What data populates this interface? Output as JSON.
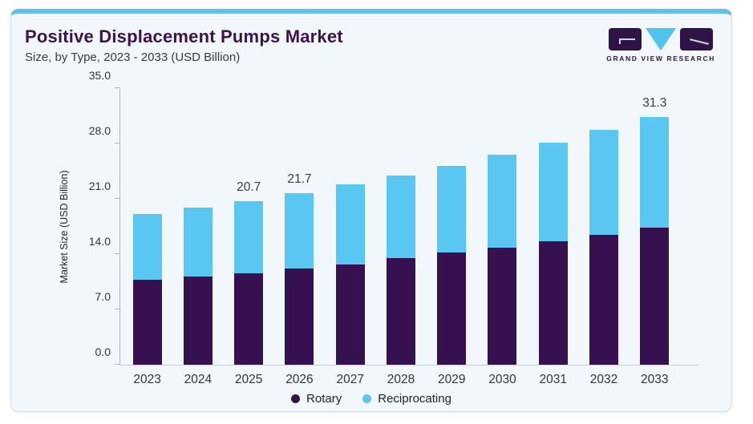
{
  "header": {
    "title": "Positive Displacement Pumps Market",
    "subtitle": "Size, by Type, 2023 - 2033 (USD Billion)"
  },
  "logo": {
    "caption": "GRAND VIEW RESEARCH",
    "mark_colors": {
      "boxes": "#2f1247",
      "triangle": "#4fc2ee"
    }
  },
  "colors": {
    "card_background": "#f1f7fb",
    "top_accent": "#65c0e7",
    "title_text": "#3d1152",
    "axis_text": "#333333"
  },
  "chart_data": {
    "type": "bar",
    "stacked": true,
    "title": "Positive Displacement Pumps Market Size, by Type, 2023 - 2033 (USD Billion)",
    "xlabel": "",
    "ylabel": "Market Size (USD Billion)",
    "ylim": [
      0,
      35
    ],
    "yticks": [
      "0.0",
      "7.0",
      "14.0",
      "21.0",
      "28.0",
      "35.0"
    ],
    "ytick_values": [
      0,
      7,
      14,
      21,
      28,
      35
    ],
    "grid": false,
    "legend_position": "bottom",
    "categories": [
      "2023",
      "2024",
      "2025",
      "2026",
      "2027",
      "2028",
      "2029",
      "2030",
      "2031",
      "2032",
      "2033"
    ],
    "series": [
      {
        "name": "Rotary",
        "color": "#36104f",
        "values": [
          10.8,
          11.2,
          11.6,
          12.2,
          12.7,
          13.5,
          14.2,
          14.8,
          15.6,
          16.4,
          17.3
        ]
      },
      {
        "name": "Reciprocating",
        "color": "#5ac6f2",
        "values": [
          8.3,
          8.7,
          9.1,
          9.5,
          10.1,
          10.4,
          11.0,
          11.8,
          12.5,
          13.3,
          14.0
        ]
      }
    ],
    "totals": [
      19.1,
      19.9,
      20.7,
      21.7,
      22.8,
      23.9,
      25.2,
      26.6,
      28.1,
      29.7,
      31.3
    ],
    "bar_labels": [
      "",
      "",
      "20.7",
      "21.7",
      "",
      "",
      "",
      "",
      "",
      "",
      "31.3"
    ]
  }
}
